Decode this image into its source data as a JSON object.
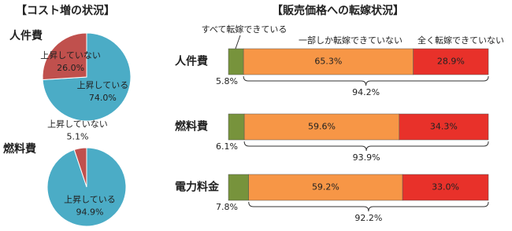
{
  "chart_data": [
    {
      "type": "pie",
      "title": "【コスト増の状況】",
      "subtitle": "人件費",
      "categories": [
        "上昇していない",
        "上昇している"
      ],
      "values": [
        26.0,
        74.0
      ],
      "value_labels": [
        "26.0%",
        "74.0%"
      ],
      "colors": [
        "#c0504d",
        "#4bacc6"
      ]
    },
    {
      "type": "pie",
      "subtitle": "燃料費",
      "categories": [
        "上昇していない",
        "上昇している"
      ],
      "values": [
        5.1,
        94.9
      ],
      "value_labels": [
        "5.1%",
        "94.9%"
      ],
      "colors": [
        "#c0504d",
        "#4bacc6"
      ]
    },
    {
      "type": "stacked_bar",
      "title": "【販売価格への転嫁状況】",
      "orientation": "horizontal",
      "categories": [
        "人件費",
        "燃料費",
        "電力料金"
      ],
      "series": [
        {
          "name": "すべて転嫁できている",
          "color": "#77933c",
          "values": [
            5.8,
            6.1,
            7.8
          ],
          "value_labels": [
            "5.8%",
            "6.1%",
            "7.8%"
          ]
        },
        {
          "name": "一部しか転嫁できていない",
          "color": "#f79646",
          "values": [
            65.3,
            59.6,
            59.2
          ],
          "value_labels": [
            "65.3%",
            "59.6%",
            "59.2%"
          ]
        },
        {
          "name": "全く転嫁できていない",
          "color": "#e8312a",
          "values": [
            28.9,
            34.3,
            33.0
          ],
          "value_labels": [
            "28.9%",
            "34.3%",
            "33.0%"
          ]
        }
      ],
      "annotations": [
        {
          "value": 94.2,
          "label": "94.2%"
        },
        {
          "value": 93.9,
          "label": "93.9%"
        },
        {
          "value": 92.2,
          "label": "92.2%"
        }
      ]
    }
  ]
}
